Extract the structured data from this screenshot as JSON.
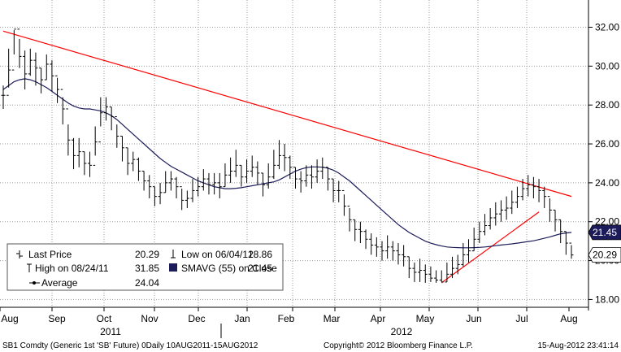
{
  "chart_data": {
    "type": "bar",
    "subtype": "ohlc",
    "ylim": [
      17.6,
      33.4
    ],
    "yticks": [
      18,
      20,
      22,
      24,
      26,
      28,
      30,
      32
    ],
    "ytick_labels": [
      "18.00",
      "20.00",
      "22.00",
      "24.00",
      "26.00",
      "28.00",
      "30.00",
      "32.00"
    ],
    "grid": "horizontal-dotted",
    "x_month_labels": [
      "Aug",
      "Sep",
      "Oct",
      "Nov",
      "Dec",
      "Jan",
      "Feb",
      "Mar",
      "Apr",
      "May",
      "Jun",
      "Jul",
      "Aug"
    ],
    "x_year_labels": [
      "2011",
      "2012"
    ],
    "series": [
      {
        "name": "Last Price",
        "close": [
          28.5,
          29.8,
          31.9,
          30.5,
          29.6,
          30.3,
          29.9,
          29.3,
          30.1,
          29.5,
          28.8,
          27.8,
          26.2,
          25.4,
          25.6,
          25.0,
          24.9,
          26.1,
          27.6,
          27.9,
          27.4,
          26.4,
          25.8,
          25.0,
          25.2,
          24.6,
          24.1,
          23.8,
          23.3,
          23.5,
          24.0,
          24.2,
          23.8,
          23.1,
          23.2,
          23.6,
          23.8,
          24.2,
          23.9,
          24.0,
          23.8,
          24.4,
          24.6,
          24.9,
          24.3,
          24.6,
          24.8,
          24.5,
          23.9,
          24.3,
          24.9,
          25.4,
          25.3,
          24.8,
          24.2,
          24.1,
          24.4,
          24.3,
          24.6,
          24.8,
          24.2,
          23.6,
          23.6,
          22.8,
          22.1,
          21.6,
          21.5,
          21.1,
          20.8,
          20.7,
          20.5,
          20.7,
          20.5,
          20.3,
          20.2,
          19.6,
          19.4,
          19.5,
          19.3,
          19.1,
          19.0,
          18.9,
          19.3,
          19.6,
          19.8,
          20.3,
          20.5,
          21.1,
          21.5,
          21.8,
          22.2,
          22.4,
          22.6,
          22.7,
          23.0,
          23.3,
          23.7,
          23.9,
          23.8,
          23.6,
          23.3,
          22.6,
          22.1,
          21.5,
          20.9,
          20.29
        ],
        "high": [
          29.0,
          30.9,
          31.85,
          31.4,
          30.8,
          30.9,
          30.7,
          29.9,
          30.6,
          30.3,
          29.4,
          28.4,
          27.0,
          26.3,
          26.3,
          25.6,
          25.6,
          26.9,
          28.4,
          28.4,
          27.9,
          27.0,
          26.4,
          25.8,
          25.6,
          25.3,
          24.6,
          24.4,
          23.8,
          24.0,
          24.6,
          24.6,
          24.3,
          23.7,
          23.6,
          24.2,
          24.3,
          24.7,
          24.5,
          24.5,
          24.5,
          25.0,
          25.3,
          25.7,
          24.9,
          25.2,
          25.4,
          25.1,
          24.5,
          25.0,
          25.7,
          26.2,
          26.0,
          25.4,
          24.8,
          24.6,
          24.9,
          24.9,
          25.2,
          25.3,
          24.8,
          24.2,
          24.1,
          23.4,
          22.7,
          22.1,
          22.0,
          21.6,
          21.4,
          21.2,
          21.0,
          21.3,
          21.0,
          20.9,
          20.8,
          20.2,
          19.9,
          20.1,
          19.8,
          19.7,
          19.5,
          19.5,
          19.9,
          20.2,
          20.3,
          20.9,
          21.1,
          21.7,
          22.0,
          22.4,
          22.7,
          23.0,
          23.1,
          23.3,
          23.6,
          23.8,
          24.2,
          24.4,
          24.3,
          24.2,
          23.8,
          23.2,
          22.6,
          22.1,
          21.5,
          20.8
        ],
        "low": [
          27.8,
          28.9,
          30.6,
          29.9,
          28.8,
          29.5,
          29.0,
          28.6,
          29.3,
          28.7,
          28.1,
          27.0,
          25.4,
          24.7,
          24.8,
          24.4,
          24.3,
          25.4,
          26.9,
          27.2,
          26.7,
          25.8,
          25.1,
          24.4,
          24.6,
          24.1,
          23.6,
          23.2,
          22.8,
          22.9,
          23.5,
          23.6,
          23.2,
          22.6,
          22.7,
          23.0,
          23.3,
          23.6,
          23.4,
          23.4,
          23.2,
          23.8,
          24.0,
          24.3,
          23.8,
          24.0,
          24.3,
          23.9,
          23.3,
          23.7,
          24.2,
          24.7,
          24.6,
          24.2,
          23.7,
          23.5,
          23.8,
          23.7,
          24.0,
          24.2,
          23.6,
          23.0,
          23.0,
          22.3,
          21.5,
          21.0,
          20.9,
          20.6,
          20.3,
          20.2,
          20.0,
          20.1,
          20.0,
          19.8,
          19.7,
          19.1,
          18.9,
          18.9,
          18.86,
          18.9,
          18.86,
          18.9,
          18.9,
          19.1,
          19.3,
          19.7,
          19.9,
          20.5,
          20.9,
          21.3,
          21.6,
          21.8,
          22.0,
          22.1,
          22.4,
          22.7,
          23.1,
          23.3,
          23.2,
          23.0,
          22.7,
          22.0,
          21.5,
          20.9,
          20.3,
          20.1
        ]
      },
      {
        "name": "SMAVG (55) on Close",
        "values": [
          28.8,
          29.0,
          29.2,
          29.3,
          29.35,
          29.3,
          29.2,
          29.05,
          28.9,
          28.7,
          28.5,
          28.3,
          28.1,
          27.95,
          27.85,
          27.8,
          27.8,
          27.75,
          27.7,
          27.6,
          27.45,
          27.25,
          27.0,
          26.75,
          26.5,
          26.25,
          26.0,
          25.75,
          25.5,
          25.25,
          25.05,
          24.85,
          24.7,
          24.55,
          24.4,
          24.25,
          24.1,
          24.0,
          23.9,
          23.8,
          23.75,
          23.7,
          23.7,
          23.72,
          23.75,
          23.8,
          23.85,
          23.9,
          23.95,
          24.0,
          24.05,
          24.15,
          24.3,
          24.45,
          24.6,
          24.7,
          24.78,
          24.82,
          24.82,
          24.8,
          24.75,
          24.65,
          24.5,
          24.3,
          24.1,
          23.85,
          23.6,
          23.35,
          23.1,
          22.85,
          22.6,
          22.35,
          22.1,
          21.85,
          21.65,
          21.45,
          21.3,
          21.15,
          21.0,
          20.9,
          20.82,
          20.75,
          20.7,
          20.68,
          20.67,
          20.66,
          20.66,
          20.67,
          20.68,
          20.7,
          20.73,
          20.77,
          20.8,
          20.83,
          20.86,
          20.9,
          20.94,
          20.98,
          21.02,
          21.08,
          21.15,
          21.22,
          21.3,
          21.38,
          21.42,
          21.45
        ]
      }
    ],
    "trendlines": [
      {
        "from": [
          0,
          31.8
        ],
        "to": [
          105,
          23.3
        ],
        "color": "#ff0000"
      },
      {
        "from": [
          81,
          18.86
        ],
        "to": [
          99,
          22.5
        ],
        "color": "#ff0000"
      }
    ],
    "right_tags": [
      {
        "text": "21.45",
        "value": 21.45,
        "bg": "#1c1c5a",
        "fg": "#ffffff"
      },
      {
        "text": "20.29",
        "value": 20.29,
        "bg": "#ffffff",
        "fg": "#000000"
      }
    ],
    "legend": {
      "last_label": "Last Price",
      "last_value": "20.29",
      "low_label": "Low on 06/04/12",
      "low_value": "18.86",
      "high_label": "High on 08/24/11",
      "high_value": "31.85",
      "smavg_label": "SMAVG (55) on Close",
      "smavg_value": "21.45",
      "avg_label": "Average",
      "avg_value": "24.04"
    },
    "footer_left": "SB1 Comdty (Generic 1st 'SB' Future) 0Daily 10AUG2011-15AUG2012",
    "footer_center": "Copyright© 2012 Bloomberg Finance L.P.",
    "footer_right": "15-Aug-2012 23:41:14",
    "colors": {
      "price": "#000000",
      "sma": "#1c1c5a",
      "trend": "#ff0000",
      "grid": "#9a9a9a"
    }
  }
}
